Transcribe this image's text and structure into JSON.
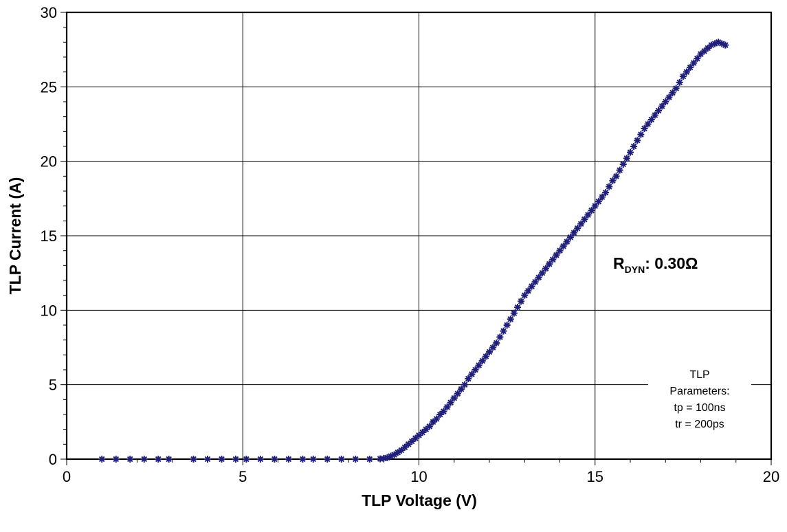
{
  "chart_data": {
    "type": "scatter",
    "title": "",
    "xlabel": "TLP Voltage (V)",
    "ylabel": "TLP Current (A)",
    "xlim": [
      0,
      20
    ],
    "ylim": [
      0,
      30
    ],
    "x_ticks": [
      "0",
      "5",
      "10",
      "15",
      "20"
    ],
    "y_ticks": [
      "0",
      "5",
      "10",
      "15",
      "20",
      "25",
      "30"
    ],
    "grid": true,
    "marker": "asterisk",
    "series_color": "#1f1f7a",
    "annotation": {
      "main": "R",
      "sub": "DYN",
      "value": ": 0.30Ω"
    },
    "parameters_box": [
      "TLP",
      "Parameters:",
      "tp = 100ns",
      "tr = 200ps"
    ],
    "series": [
      {
        "points": [
          [
            1.0,
            0.0
          ],
          [
            1.4,
            0.0
          ],
          [
            1.8,
            0.0
          ],
          [
            2.2,
            0.0
          ],
          [
            2.6,
            0.0
          ],
          [
            2.9,
            0.0
          ],
          [
            3.6,
            0.0
          ],
          [
            4.0,
            0.0
          ],
          [
            4.4,
            0.0
          ],
          [
            4.8,
            0.0
          ],
          [
            5.1,
            0.0
          ],
          [
            5.5,
            0.0
          ],
          [
            5.9,
            0.0
          ],
          [
            6.3,
            0.0
          ],
          [
            6.7,
            0.0
          ],
          [
            7.0,
            0.0
          ],
          [
            7.4,
            0.0
          ],
          [
            7.8,
            0.0
          ],
          [
            8.2,
            0.0
          ],
          [
            8.6,
            0.0
          ],
          [
            8.9,
            0.02
          ],
          [
            9.0,
            0.05
          ],
          [
            9.1,
            0.1
          ],
          [
            9.2,
            0.2
          ],
          [
            9.3,
            0.3
          ],
          [
            9.4,
            0.45
          ],
          [
            9.5,
            0.6
          ],
          [
            9.6,
            0.8
          ],
          [
            9.7,
            1.0
          ],
          [
            9.8,
            1.2
          ],
          [
            9.9,
            1.4
          ],
          [
            10.0,
            1.6
          ],
          [
            10.1,
            1.8
          ],
          [
            10.2,
            2.0
          ],
          [
            10.3,
            2.2
          ],
          [
            10.4,
            2.5
          ],
          [
            10.5,
            2.7
          ],
          [
            10.6,
            3.0
          ],
          [
            10.7,
            3.2
          ],
          [
            10.8,
            3.5
          ],
          [
            10.9,
            3.8
          ],
          [
            11.0,
            4.1
          ],
          [
            11.1,
            4.4
          ],
          [
            11.2,
            4.7
          ],
          [
            11.3,
            5.0
          ],
          [
            11.4,
            5.4
          ],
          [
            11.5,
            5.7
          ],
          [
            11.6,
            6.0
          ],
          [
            11.7,
            6.3
          ],
          [
            11.8,
            6.6
          ],
          [
            11.9,
            6.9
          ],
          [
            12.0,
            7.2
          ],
          [
            12.1,
            7.5
          ],
          [
            12.2,
            7.8
          ],
          [
            12.3,
            8.2
          ],
          [
            12.4,
            8.6
          ],
          [
            12.5,
            9.0
          ],
          [
            12.6,
            9.4
          ],
          [
            12.7,
            9.8
          ],
          [
            12.8,
            10.2
          ],
          [
            12.9,
            10.6
          ],
          [
            13.0,
            11.0
          ],
          [
            13.1,
            11.3
          ],
          [
            13.2,
            11.6
          ],
          [
            13.3,
            11.9
          ],
          [
            13.4,
            12.2
          ],
          [
            13.5,
            12.5
          ],
          [
            13.6,
            12.8
          ],
          [
            13.7,
            13.1
          ],
          [
            13.8,
            13.4
          ],
          [
            13.9,
            13.7
          ],
          [
            14.0,
            14.0
          ],
          [
            14.1,
            14.3
          ],
          [
            14.2,
            14.6
          ],
          [
            14.3,
            14.9
          ],
          [
            14.4,
            15.2
          ],
          [
            14.5,
            15.5
          ],
          [
            14.6,
            15.8
          ],
          [
            14.7,
            16.1
          ],
          [
            14.8,
            16.4
          ],
          [
            14.9,
            16.7
          ],
          [
            15.0,
            17.0
          ],
          [
            15.1,
            17.3
          ],
          [
            15.2,
            17.6
          ],
          [
            15.3,
            17.9
          ],
          [
            15.4,
            18.3
          ],
          [
            15.5,
            18.7
          ],
          [
            15.6,
            19.0
          ],
          [
            15.7,
            19.4
          ],
          [
            15.8,
            19.8
          ],
          [
            15.9,
            20.2
          ],
          [
            16.0,
            20.6
          ],
          [
            16.1,
            21.0
          ],
          [
            16.2,
            21.4
          ],
          [
            16.3,
            21.8
          ],
          [
            16.4,
            22.2
          ],
          [
            16.5,
            22.5
          ],
          [
            16.6,
            22.8
          ],
          [
            16.7,
            23.1
          ],
          [
            16.8,
            23.4
          ],
          [
            16.9,
            23.7
          ],
          [
            17.0,
            24.0
          ],
          [
            17.1,
            24.3
          ],
          [
            17.2,
            24.6
          ],
          [
            17.3,
            24.9
          ],
          [
            17.4,
            25.3
          ],
          [
            17.5,
            25.7
          ],
          [
            17.6,
            26.0
          ],
          [
            17.7,
            26.3
          ],
          [
            17.8,
            26.6
          ],
          [
            17.9,
            26.9
          ],
          [
            18.0,
            27.2
          ],
          [
            18.1,
            27.4
          ],
          [
            18.2,
            27.6
          ],
          [
            18.3,
            27.8
          ],
          [
            18.4,
            27.9
          ],
          [
            18.5,
            28.0
          ],
          [
            18.6,
            27.9
          ],
          [
            18.7,
            27.8
          ]
        ]
      }
    ]
  }
}
